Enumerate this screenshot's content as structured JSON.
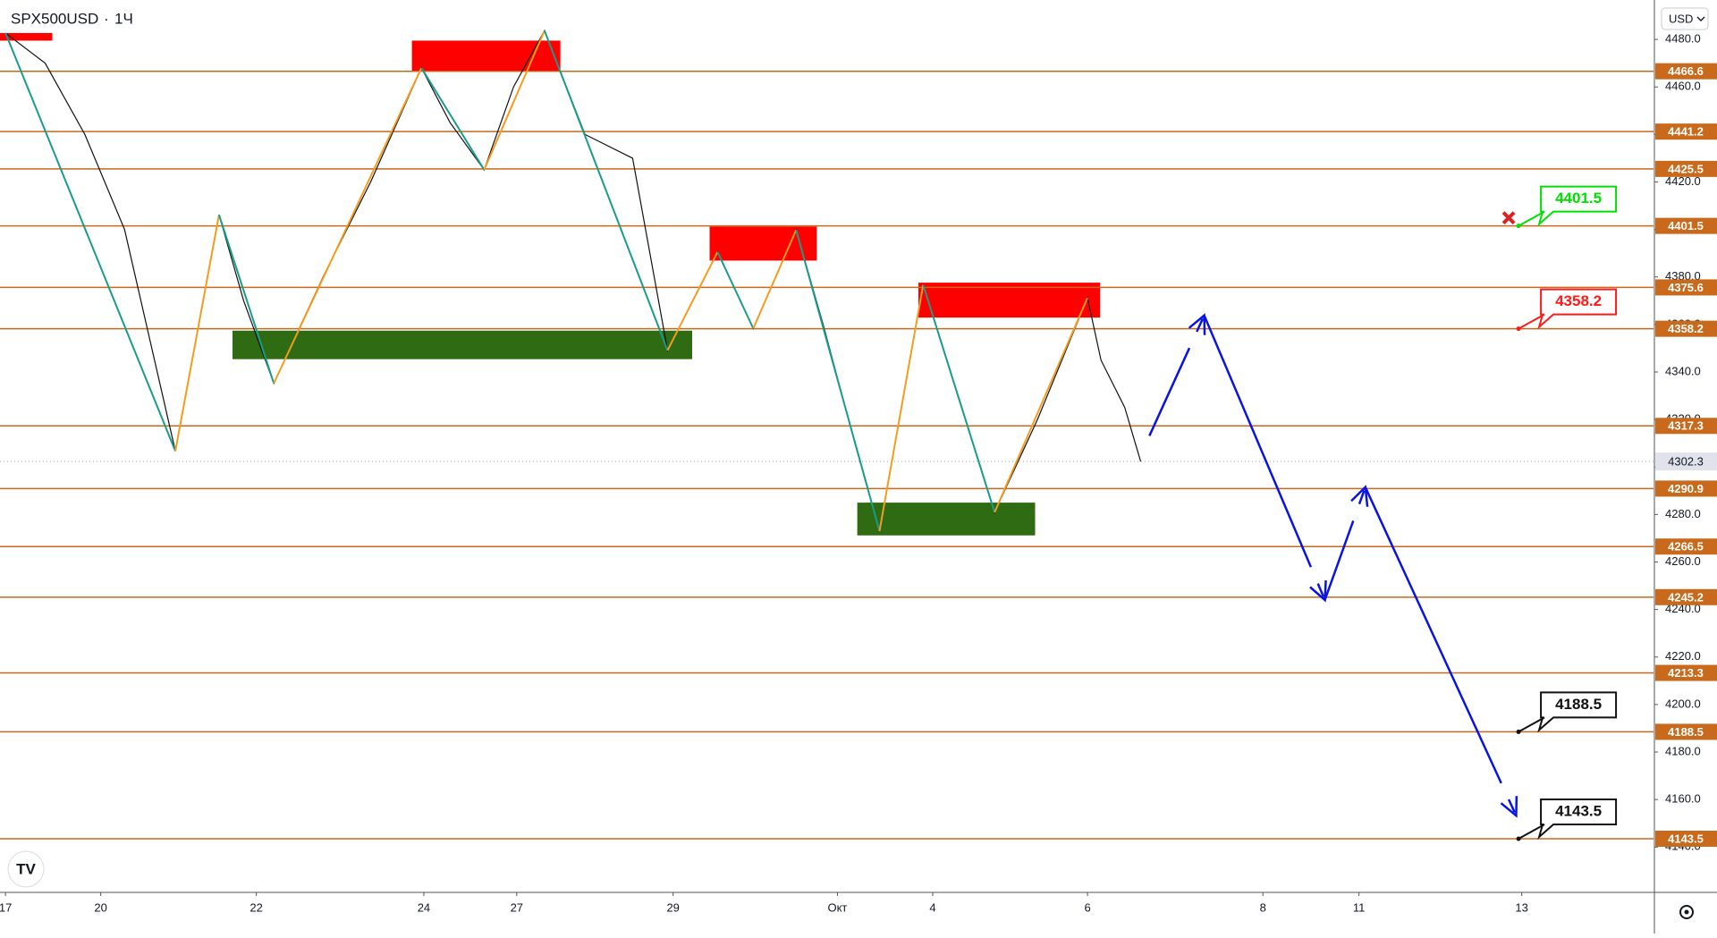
{
  "chart_data": {
    "type": "line",
    "title": "SPX500USD",
    "interval": "1Ч",
    "currency": "USD",
    "xlim": [
      -0.069,
      20.76
    ],
    "xticks": [
      {
        "value": 0,
        "label": "17"
      },
      {
        "value": 1.2,
        "label": "20"
      },
      {
        "value": 3.16,
        "label": "22"
      },
      {
        "value": 5.27,
        "label": "24"
      },
      {
        "value": 6.44,
        "label": "27"
      },
      {
        "value": 8.41,
        "label": "29"
      },
      {
        "value": 10.48,
        "label": "Окт"
      },
      {
        "value": 11.68,
        "label": "4"
      },
      {
        "value": 13.63,
        "label": "6"
      },
      {
        "value": 15.84,
        "label": "8"
      },
      {
        "value": 17.05,
        "label": "11"
      },
      {
        "value": 19.1,
        "label": "13"
      }
    ],
    "ylim": [
      4120.9,
      4496.6
    ],
    "yticks": [
      {
        "value": 4140,
        "label": "4140.0"
      },
      {
        "value": 4160,
        "label": "4160.0"
      },
      {
        "value": 4180,
        "label": "4180.0"
      },
      {
        "value": 4200,
        "label": "4200.0"
      },
      {
        "value": 4220,
        "label": "4220.0"
      },
      {
        "value": 4240,
        "label": "4240.0"
      },
      {
        "value": 4260,
        "label": "4260.0"
      },
      {
        "value": 4280,
        "label": "4280.0"
      },
      {
        "value": 4300,
        "label": "4300.0"
      },
      {
        "value": 4320,
        "label": "4320.0"
      },
      {
        "value": 4340,
        "label": "4340.0"
      },
      {
        "value": 4360,
        "label": "4360.0"
      },
      {
        "value": 4380,
        "label": "4380.0"
      },
      {
        "value": 4400,
        "label": "4400.0"
      },
      {
        "value": 4420,
        "label": "4420.0"
      },
      {
        "value": 4440,
        "label": "4440.0"
      },
      {
        "value": 4460,
        "label": "4460.0"
      },
      {
        "value": 4480,
        "label": "4480.0"
      }
    ],
    "levels": {
      "color": "#c8691c",
      "values": [
        4466.6,
        4441.2,
        4425.5,
        4401.5,
        4375.6,
        4358.2,
        4317.3,
        4290.9,
        4266.5,
        4245.2,
        4213.3,
        4188.5,
        4143.5
      ]
    },
    "last_price": {
      "value": 4302.3,
      "color": "#9aa0a8"
    },
    "zones": [
      {
        "color": "#ff0000",
        "x": [
          -0.069,
          0.59
        ],
        "y": [
          4479.5,
          4482.7
        ]
      },
      {
        "color": "#ff0000",
        "x": [
          5.12,
          6.99
        ],
        "y": [
          4466.6,
          4479.5
        ]
      },
      {
        "color": "#ff0000",
        "x": [
          8.87,
          10.22
        ],
        "y": [
          4386.9,
          4401.2
        ]
      },
      {
        "color": "#ff0000",
        "x": [
          11.5,
          13.79
        ],
        "y": [
          4362.9,
          4377.6
        ]
      },
      {
        "color": "#2e6b12",
        "x": [
          2.86,
          8.65
        ],
        "y": [
          4345.4,
          4357.4
        ]
      },
      {
        "color": "#2e6b12",
        "x": [
          10.73,
          12.97
        ],
        "y": [
          4271.2,
          4285.0
        ]
      }
    ],
    "zigzag": {
      "up_color": "#f39c1f",
      "down_color": "#1a9c8a",
      "x": [
        0,
        2.14,
        2.69,
        3.38,
        5.24,
        6.03,
        6.79,
        8.34,
        8.97,
        9.42,
        9.96,
        11.01,
        11.56,
        12.46,
        13.63
      ],
      "values": [
        4482.7,
        4306.7,
        4406.2,
        4335.2,
        4468.0,
        4425.1,
        4483.7,
        4349.1,
        4390.5,
        4358.3,
        4399.8,
        4273.0,
        4376.7,
        4280.9,
        4371.2
      ]
    },
    "price_path": {
      "color": "#111111",
      "x": [
        0,
        0.5,
        1.0,
        1.5,
        2.14,
        2.69,
        3.0,
        3.38,
        4.0,
        4.6,
        5.24,
        5.6,
        6.03,
        6.4,
        6.79,
        7.3,
        7.9,
        8.34,
        8.97,
        9.42,
        9.96,
        10.3,
        10.7,
        11.01,
        11.56,
        12.0,
        12.46,
        13.0,
        13.63,
        13.8,
        14.1,
        14.3
      ],
      "values": [
        4482.7,
        4470,
        4440,
        4400,
        4306.7,
        4406.2,
        4370,
        4335.2,
        4380,
        4420,
        4468.0,
        4445,
        4425.1,
        4460,
        4483.7,
        4440,
        4430,
        4349.1,
        4390.5,
        4358.3,
        4399.8,
        4360,
        4310,
        4273.0,
        4376.7,
        4330,
        4280.9,
        4320,
        4371.2,
        4345,
        4325,
        4302.3
      ]
    },
    "projection": {
      "color": "#0a14e0",
      "x": [
        14.41,
        15.1,
        16.62,
        17.13,
        19.03
      ],
      "values": [
        4313.1,
        4363.8,
        4244.0,
        4291.5,
        4153.2
      ]
    },
    "callouts": [
      {
        "value": 4401.5,
        "x": 19.06,
        "color": "#00e000"
      },
      {
        "value": 4358.2,
        "x": 19.06,
        "color": "#ff1a1a"
      },
      {
        "value": 4188.5,
        "x": 19.06,
        "color": "#111111"
      },
      {
        "value": 4143.5,
        "x": 19.06,
        "color": "#111111"
      }
    ]
  }
}
